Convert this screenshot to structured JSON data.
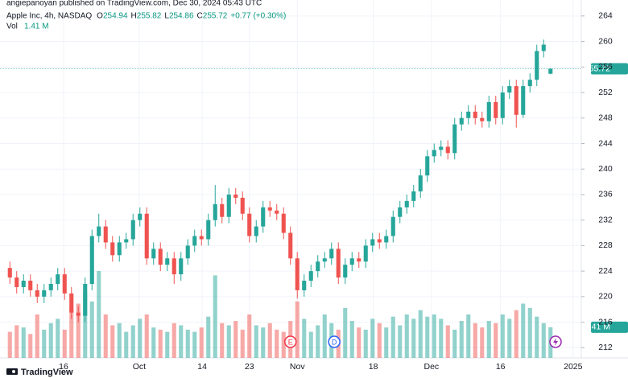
{
  "header": {
    "publisher": "angiepanoyan published on TradingView.com, Dec 30, 2024 05:43 UTC",
    "symbol": "Apple Inc, 4h, NASDAQ",
    "ohlc": [
      {
        "label": "O",
        "value": 254.94
      },
      {
        "label": "H",
        "value": 255.82
      },
      {
        "label": "L",
        "value": 254.86
      },
      {
        "label": "C",
        "value": 255.72
      }
    ],
    "change": "+0.77 (+0.30%)",
    "volume_title": "Vol",
    "volume": "1.41 M"
  },
  "footer": {
    "brand": "TradingView"
  },
  "chart_data": {
    "type": "candlestick",
    "up_color": "#26a69a",
    "down_color": "#ef5350",
    "grid": true,
    "open": [
      224.5,
      223,
      221.5,
      222.5,
      221,
      220,
      221,
      222,
      223.5,
      220.5,
      217.5,
      217,
      222,
      229.5,
      231,
      228.5,
      226.5,
      228.5,
      229,
      232,
      233,
      226,
      227.5,
      225,
      226,
      223.5,
      226,
      228,
      229.5,
      229,
      232,
      234.5,
      232.5,
      236,
      235.5,
      233,
      229.5,
      231,
      234,
      233.5,
      233,
      230,
      226,
      221,
      222.5,
      224,
      225.5,
      226,
      227.5,
      223,
      225,
      226,
      225.5,
      228,
      229,
      228.5,
      229.5,
      232.5,
      234,
      235,
      236.5,
      239,
      242,
      243,
      243.5,
      242.5,
      247,
      248,
      249,
      248,
      247.5,
      250.5,
      248,
      252,
      253,
      248.5,
      253,
      254,
      258.5,
      254.94
    ],
    "high": [
      225.5,
      224,
      223.5,
      223.5,
      222,
      222,
      223,
      224.5,
      224.5,
      221.5,
      218.5,
      223,
      230.5,
      233,
      232,
      229.5,
      229.5,
      230,
      233,
      234,
      234,
      228.5,
      228.5,
      227,
      227,
      227,
      229,
      230.5,
      230.5,
      233,
      237.5,
      235.5,
      237,
      237,
      236.5,
      234,
      232,
      235,
      235,
      234.5,
      234,
      231,
      227,
      223.5,
      225,
      226.5,
      227,
      228.5,
      228.5,
      226,
      227,
      227,
      229,
      230,
      230,
      230.5,
      233.5,
      235,
      236,
      237.5,
      240,
      243,
      244,
      244.5,
      244.5,
      248,
      249,
      250,
      250,
      249,
      251.5,
      251.5,
      253,
      254,
      254,
      254,
      255,
      259.5,
      260.3,
      255.82
    ],
    "low": [
      222,
      220.5,
      220.5,
      220,
      219,
      219,
      220,
      221,
      219.5,
      216.5,
      216,
      216,
      221,
      228.5,
      227.5,
      225.5,
      225.5,
      227.5,
      228,
      231,
      225,
      225,
      224,
      224,
      222,
      222.5,
      225,
      227,
      228,
      228,
      231,
      231.5,
      231.5,
      234.5,
      232,
      228.5,
      228.5,
      230,
      232.5,
      232,
      229,
      225,
      219.7,
      220,
      221.5,
      223,
      224.5,
      225,
      222,
      222,
      224,
      224.5,
      224.5,
      227,
      227.5,
      227.5,
      228.5,
      231.5,
      233,
      234,
      235.5,
      238,
      241,
      242,
      241.5,
      241.5,
      246,
      247,
      247,
      246.5,
      246.5,
      247,
      247,
      251,
      246.5,
      248,
      252,
      253,
      257.5,
      254.86
    ],
    "close": [
      223,
      221.5,
      222.5,
      221,
      220,
      221,
      222,
      223.5,
      220.5,
      217.5,
      217,
      222,
      229.5,
      231,
      228.5,
      226.5,
      228.5,
      229,
      232,
      233,
      226,
      227.5,
      225,
      226,
      223.5,
      226,
      228,
      229.5,
      229,
      232,
      234.5,
      232.5,
      236,
      235.5,
      233,
      229.5,
      231,
      234,
      233.5,
      233,
      230,
      226,
      221,
      222.5,
      224,
      225.5,
      226,
      227.5,
      223,
      225,
      226,
      225.5,
      228,
      229,
      228.5,
      229.5,
      232.5,
      234,
      235,
      236.5,
      239,
      242,
      243,
      243.5,
      242.5,
      247,
      248,
      249,
      248,
      247.5,
      250.5,
      248,
      252,
      253,
      248.5,
      253,
      254,
      258.5,
      259.5,
      255.72
    ],
    "volume": [
      1.2,
      1.5,
      1.4,
      1.1,
      2.0,
      1.3,
      1.6,
      1.8,
      1.3,
      2.2,
      2.5,
      3.0,
      2.6,
      4.0,
      2.0,
      1.5,
      1.6,
      1.2,
      1.5,
      1.8,
      2.0,
      1.4,
      1.3,
      1.2,
      1.6,
      1.5,
      1.3,
      1.2,
      1.4,
      1.9,
      3.8,
      1.6,
      1.5,
      1.7,
      1.3,
      2.0,
      1.5,
      1.4,
      1.6,
      1.3,
      1.2,
      1.7,
      2.6,
      1.8,
      1.2,
      1.5,
      2.0,
      1.6,
      1.3,
      2.3,
      1.7,
      1.4,
      1.3,
      1.8,
      1.6,
      1.4,
      1.9,
      1.5,
      2.0,
      1.8,
      2.2,
      1.9,
      2.0,
      1.8,
      1.5,
      1.3,
      1.7,
      2.0,
      1.6,
      1.4,
      1.7,
      1.6,
      2.0,
      1.8,
      2.2,
      2.5,
      2.3,
      1.9,
      1.6,
      1.41
    ],
    "ylim": [
      210.4,
      266.5
    ],
    "yticks": [
      212,
      216,
      220,
      224,
      228,
      232,
      236,
      240,
      244,
      248,
      252,
      256,
      260,
      264
    ],
    "xlim": [
      0,
      84
    ],
    "xticks": [
      {
        "value": 8.35,
        "label": "16"
      },
      {
        "value": 19.4,
        "label": "Oct"
      },
      {
        "value": 28.6,
        "label": "14"
      },
      {
        "value": 35.5,
        "label": "23"
      },
      {
        "value": 42.5,
        "label": "Nov"
      },
      {
        "value": 53.6,
        "label": "18"
      },
      {
        "value": 62.1,
        "label": "Dec"
      },
      {
        "value": 72.2,
        "label": "16"
      },
      {
        "value": 82.8,
        "label": "2025"
      }
    ],
    "events": [
      {
        "label": "E",
        "x": 41.5
      },
      {
        "label": "D",
        "x": 47.9
      }
    ]
  }
}
